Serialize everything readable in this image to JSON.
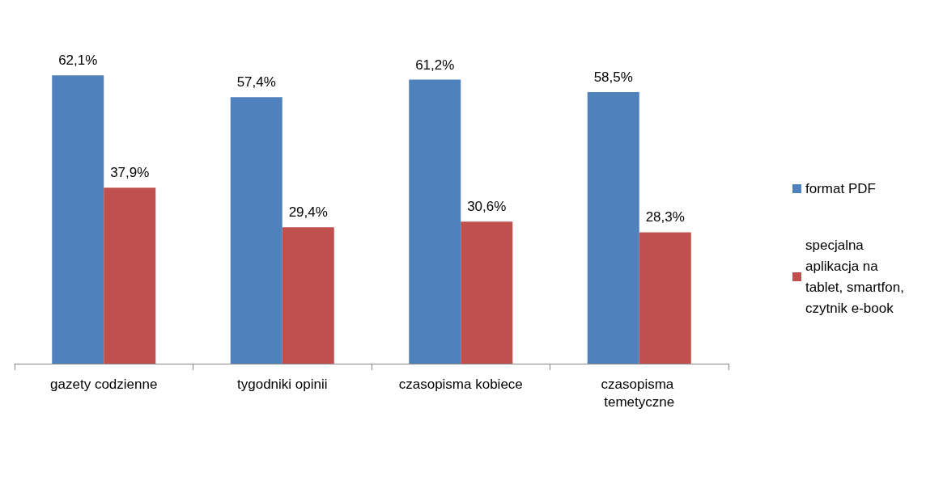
{
  "chart_data": {
    "type": "bar",
    "categories": [
      "gazety codzienne",
      "tygodniki opinii",
      "czasopisma kobiece",
      "czasopisma temetyczne"
    ],
    "series": [
      {
        "name": "format PDF",
        "color": "#4f81bd",
        "values": [
          62.1,
          57.4,
          61.2,
          58.5
        ],
        "value_labels": [
          "62,1%",
          "57,4%",
          "61,2%",
          "58,5%"
        ]
      },
      {
        "name": "specjalna aplikacja na tablet, smartfon, czytnik e-book",
        "color": "#c0504d",
        "values": [
          37.9,
          29.4,
          30.6,
          28.3
        ],
        "value_labels": [
          "37,9%",
          "29,4%",
          "30,6%",
          "28,3%"
        ]
      }
    ],
    "legend": "right",
    "grid": false
  }
}
